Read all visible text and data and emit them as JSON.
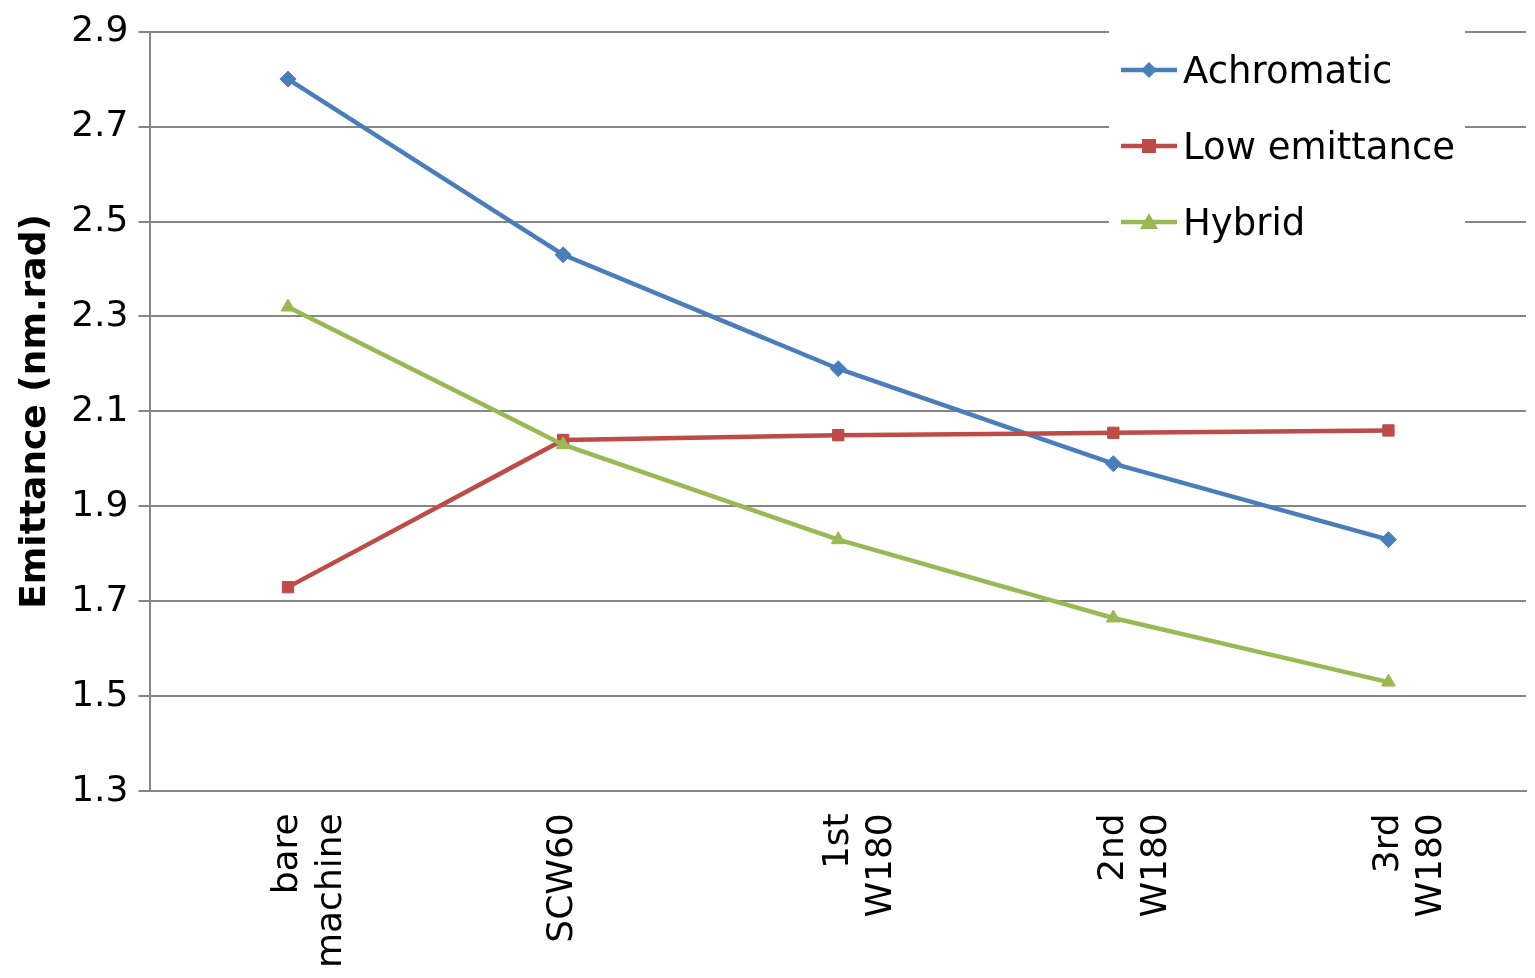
{
  "chart_data": {
    "type": "line",
    "ylabel": "Emittance (nm.rad)",
    "categories": [
      "bare machine",
      "SCW60",
      "1st W180",
      "2nd W180",
      "3rd W180"
    ],
    "series": [
      {
        "name": "Achromatic",
        "color": "#4a7ebb",
        "marker": "diamond",
        "values": [
          2.8,
          2.43,
          2.19,
          1.99,
          1.83
        ]
      },
      {
        "name": "Low emittance",
        "color": "#be4b48",
        "marker": "square",
        "values": [
          1.73,
          2.04,
          2.05,
          2.055,
          2.06
        ]
      },
      {
        "name": "Hybrid",
        "color": "#98b954",
        "marker": "triangle",
        "values": [
          2.32,
          2.03,
          1.83,
          1.665,
          1.53
        ]
      }
    ],
    "ylim": [
      1.3,
      2.9
    ],
    "yticks": [
      1.3,
      1.5,
      1.7,
      1.9,
      2.1,
      2.3,
      2.5,
      2.7,
      2.9
    ],
    "grid": "y",
    "legend": "top right",
    "line_style": "solid"
  }
}
